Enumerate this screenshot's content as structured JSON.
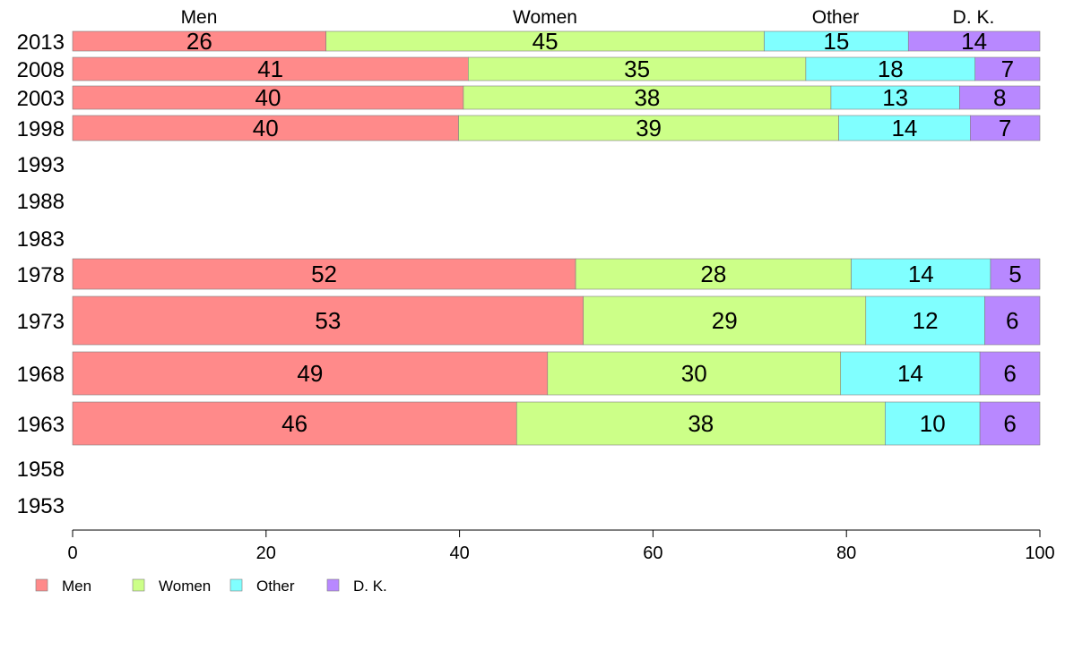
{
  "colors": {
    "men": "#ff8a8a",
    "women": "#ccff88",
    "other": "#80ffff",
    "dk": "#b888ff"
  },
  "chart_data": {
    "type": "bar",
    "orientation": "horizontal",
    "stacked": true,
    "series_names": [
      "Men",
      "Women",
      "Other",
      "D. K."
    ],
    "top_labels": [
      "Men",
      "Women",
      "Other",
      "D. K."
    ],
    "legend_labels": [
      "Men",
      "Women",
      "Other",
      "D. K."
    ],
    "legend_position": "bottom-left",
    "xlim": [
      0,
      100
    ],
    "xticks": [
      "0",
      "20",
      "40",
      "60",
      "80",
      "100"
    ],
    "rows": [
      {
        "year": "2013",
        "values": [
          26.2,
          45.3,
          14.9,
          13.6
        ],
        "labels": [
          "26",
          "45",
          "15",
          "14"
        ]
      },
      {
        "year": "2008",
        "values": [
          40.9,
          34.9,
          17.5,
          6.7
        ],
        "labels": [
          "41",
          "35",
          "18",
          "7"
        ]
      },
      {
        "year": "2003",
        "values": [
          40.4,
          38.0,
          13.3,
          8.3
        ],
        "labels": [
          "40",
          "38",
          "13",
          "8"
        ]
      },
      {
        "year": "1998",
        "values": [
          39.9,
          39.3,
          13.6,
          7.2
        ],
        "labels": [
          "40",
          "39",
          "14",
          "7"
        ]
      },
      {
        "year": "1993",
        "values": [],
        "labels": []
      },
      {
        "year": "1988",
        "values": [],
        "labels": []
      },
      {
        "year": "1983",
        "values": [],
        "labels": []
      },
      {
        "year": "1978",
        "values": [
          52.0,
          28.5,
          14.4,
          5.1
        ],
        "labels": [
          "52",
          "28",
          "14",
          "5"
        ]
      },
      {
        "year": "1973",
        "values": [
          52.8,
          29.2,
          12.3,
          5.7
        ],
        "labels": [
          "53",
          "29",
          "12",
          "6"
        ]
      },
      {
        "year": "1968",
        "values": [
          49.1,
          30.3,
          14.4,
          6.2
        ],
        "labels": [
          "49",
          "30",
          "14",
          "6"
        ]
      },
      {
        "year": "1963",
        "values": [
          45.9,
          38.1,
          9.8,
          6.2
        ],
        "labels": [
          "46",
          "38",
          "10",
          "6"
        ]
      },
      {
        "year": "1958",
        "values": [],
        "labels": []
      },
      {
        "year": "1953",
        "values": [],
        "labels": []
      }
    ]
  }
}
